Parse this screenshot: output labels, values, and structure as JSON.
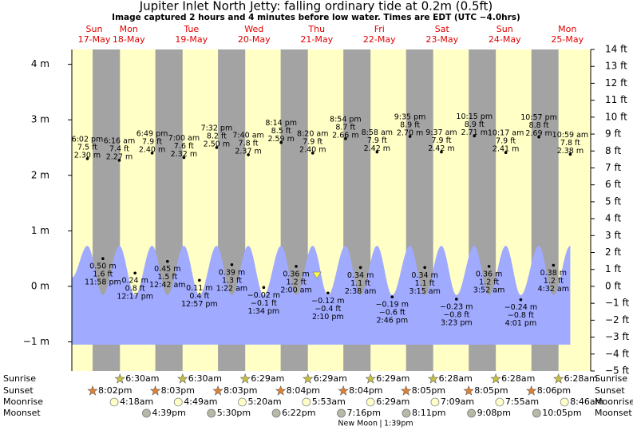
{
  "chart_data": {
    "type": "tide",
    "title": "Jupiter Inlet North Jetty: falling  ordinary tide at 0.2m (0.5ft)",
    "subtitle": "Image captured 2 hours and 4 minutes before low water. Times are EDT (UTC −4.0hrs)",
    "current_level_m": 0.2,
    "ylim": [
      -1.524,
      4.267
    ],
    "yticks": [
      {
        "value": 4,
        "label": "4 m"
      },
      {
        "value": 3,
        "label": "3 m"
      },
      {
        "value": 2,
        "label": "2 m"
      },
      {
        "value": 1,
        "label": "1 m"
      },
      {
        "value": 0,
        "label": "0 m"
      },
      {
        "value": -1,
        "label": "−1 m"
      }
    ],
    "y2lim": [
      -5,
      14
    ],
    "y2ticks": [
      {
        "value": 14,
        "label": "14 ft"
      },
      {
        "value": 13,
        "label": "13 ft"
      },
      {
        "value": 12,
        "label": "12 ft"
      },
      {
        "value": 11,
        "label": "11 ft"
      },
      {
        "value": 10,
        "label": "10 ft"
      },
      {
        "value": 9,
        "label": "9 ft"
      },
      {
        "value": 8,
        "label": "8 ft"
      },
      {
        "value": 7,
        "label": "7 ft"
      },
      {
        "value": 6,
        "label": "6 ft"
      },
      {
        "value": 5,
        "label": "5 ft"
      },
      {
        "value": 4,
        "label": "4 ft"
      },
      {
        "value": 3,
        "label": "3 ft"
      },
      {
        "value": 2,
        "label": "2 ft"
      },
      {
        "value": 1,
        "label": "1 ft"
      },
      {
        "value": 0,
        "label": "0 ft"
      },
      {
        "value": -1,
        "label": "−1 ft"
      },
      {
        "value": -2,
        "label": "−2 ft"
      },
      {
        "value": -3,
        "label": "−3 ft"
      },
      {
        "value": -4,
        "label": "−4 ft"
      },
      {
        "value": -5,
        "label": "−5 ft"
      }
    ],
    "row_labels": [
      "Sunrise",
      "Sunset",
      "Moonrise",
      "Moonset"
    ],
    "new_moon": {
      "label": "New Moon",
      "time": "1:39pm"
    },
    "days": [
      {
        "name": "Sun",
        "date": "17-May",
        "sunset": "8:02pm",
        "tides": [
          {
            "time": "6:02 pm",
            "m": 2.3,
            "ft": 7.5,
            "m_label": "2.30 m",
            "ft_label": "7.5 ft"
          },
          {
            "time": "11:58 pm",
            "m": 0.5,
            "ft": 1.6,
            "m_label": "0.50 m",
            "ft_label": "1.6 ft"
          }
        ]
      },
      {
        "name": "Mon",
        "date": "18-May",
        "sunrise": "6:30am",
        "sunset": "8:03pm",
        "moonrise": "4:18am",
        "moonset": "4:39pm",
        "tides": [
          {
            "time": "6:16 am",
            "m": 2.27,
            "ft": 7.4,
            "m_label": "2.27 m",
            "ft_label": "7.4 ft"
          },
          {
            "time": "12:17 pm",
            "m": 0.24,
            "ft": 0.8,
            "m_label": "0.24 m",
            "ft_label": "0.8 ft"
          },
          {
            "time": "6:49 pm",
            "m": 2.4,
            "ft": 7.9,
            "m_label": "2.40 m",
            "ft_label": "7.9 ft"
          }
        ]
      },
      {
        "name": "Tue",
        "date": "19-May",
        "sunrise": "6:30am",
        "sunset": "8:03pm",
        "moonrise": "4:49am",
        "moonset": "5:30pm",
        "tides": [
          {
            "time": "12:42 am",
            "m": 0.45,
            "ft": 1.5,
            "m_label": "0.45 m",
            "ft_label": "1.5 ft"
          },
          {
            "time": "7:00 am",
            "m": 2.32,
            "ft": 7.6,
            "m_label": "2.32 m",
            "ft_label": "7.6 ft"
          },
          {
            "time": "12:57 pm",
            "m": 0.11,
            "ft": 0.4,
            "m_label": "0.11 m",
            "ft_label": "0.4 ft"
          },
          {
            "time": "7:32 pm",
            "m": 2.5,
            "ft": 8.2,
            "m_label": "2.50 m",
            "ft_label": "8.2 ft"
          }
        ]
      },
      {
        "name": "Wed",
        "date": "20-May",
        "sunrise": "6:29am",
        "sunset": "8:04pm",
        "moonrise": "5:20am",
        "moonset": "6:22pm",
        "tides": [
          {
            "time": "1:22 am",
            "m": 0.39,
            "ft": 1.3,
            "m_label": "0.39 m",
            "ft_label": "1.3 ft"
          },
          {
            "time": "7:40 am",
            "m": 2.37,
            "ft": 7.8,
            "m_label": "2.37 m",
            "ft_label": "7.8 ft"
          },
          {
            "time": "1:34 pm",
            "m": -0.02,
            "ft": -0.1,
            "m_label": "−0.02 m",
            "ft_label": "−0.1 ft"
          },
          {
            "time": "8:14 pm",
            "m": 2.59,
            "ft": 8.5,
            "m_label": "2.59 m",
            "ft_label": "8.5 ft"
          }
        ]
      },
      {
        "name": "Thu",
        "date": "21-May",
        "sunrise": "6:29am",
        "sunset": "8:04pm",
        "moonrise": "5:53am",
        "moonset": "7:16pm",
        "tides": [
          {
            "time": "2:00 am",
            "m": 0.36,
            "ft": 1.2,
            "m_label": "0.36 m",
            "ft_label": "1.2 ft"
          },
          {
            "time": "8:20 am",
            "m": 2.4,
            "ft": 7.9,
            "m_label": "2.40 m",
            "ft_label": "7.9 ft"
          },
          {
            "time": "2:10 pm",
            "m": -0.12,
            "ft": -0.4,
            "m_label": "−0.12 m",
            "ft_label": "−0.4 ft"
          },
          {
            "time": "8:54 pm",
            "m": 2.66,
            "ft": 8.7,
            "m_label": "2.66 m",
            "ft_label": "8.7 ft"
          }
        ]
      },
      {
        "name": "Fri",
        "date": "22-May",
        "sunrise": "6:29am",
        "sunset": "8:05pm",
        "moonrise": "6:29am",
        "moonset": "8:11pm",
        "tides": [
          {
            "time": "2:38 am",
            "m": 0.34,
            "ft": 1.1,
            "m_label": "0.34 m",
            "ft_label": "1.1 ft"
          },
          {
            "time": "8:58 am",
            "m": 2.42,
            "ft": 7.9,
            "m_label": "2.42 m",
            "ft_label": "7.9 ft"
          },
          {
            "time": "2:46 pm",
            "m": -0.19,
            "ft": -0.6,
            "m_label": "−0.19 m",
            "ft_label": "−0.6 ft"
          },
          {
            "time": "9:35 pm",
            "m": 2.7,
            "ft": 8.9,
            "m_label": "2.70 m",
            "ft_label": "8.9 ft"
          }
        ]
      },
      {
        "name": "Sat",
        "date": "23-May",
        "sunrise": "6:28am",
        "sunset": "8:05pm",
        "moonrise": "7:09am",
        "moonset": "9:08pm",
        "tides": [
          {
            "time": "3:15 am",
            "m": 0.34,
            "ft": 1.1,
            "m_label": "0.34 m",
            "ft_label": "1.1 ft"
          },
          {
            "time": "9:37 am",
            "m": 2.42,
            "ft": 7.9,
            "m_label": "2.42 m",
            "ft_label": "7.9 ft"
          },
          {
            "time": "3:23 pm",
            "m": -0.23,
            "ft": -0.8,
            "m_label": "−0.23 m",
            "ft_label": "−0.8 ft"
          },
          {
            "time": "10:15 pm",
            "m": 2.71,
            "ft": 8.9,
            "m_label": "2.71 m",
            "ft_label": "8.9 ft"
          }
        ]
      },
      {
        "name": "Sun",
        "date": "24-May",
        "sunrise": "6:28am",
        "sunset": "8:06pm",
        "moonrise": "7:55am",
        "moonset": "10:05pm",
        "tides": [
          {
            "time": "3:52 am",
            "m": 0.36,
            "ft": 1.2,
            "m_label": "0.36 m",
            "ft_label": "1.2 ft"
          },
          {
            "time": "10:17 am",
            "m": 2.41,
            "ft": 7.9,
            "m_label": "2.41 m",
            "ft_label": "7.9 ft"
          },
          {
            "time": "4:01 pm",
            "m": -0.24,
            "ft": -0.8,
            "m_label": "−0.24 m",
            "ft_label": "−0.8 ft"
          },
          {
            "time": "10:57 pm",
            "m": 2.69,
            "ft": 8.8,
            "m_label": "2.69 m",
            "ft_label": "8.8 ft"
          }
        ]
      },
      {
        "name": "Mon",
        "date": "25-May",
        "sunrise": "6:28am",
        "moonrise": "8:46am",
        "tides": [
          {
            "time": "4:32 am",
            "m": 0.38,
            "ft": 1.2,
            "m_label": "0.38 m",
            "ft_label": "1.2 ft"
          },
          {
            "time": "10:59 am",
            "m": 2.38,
            "ft": 7.8,
            "m_label": "2.38 m",
            "ft_label": "7.8 ft"
          }
        ]
      }
    ]
  }
}
